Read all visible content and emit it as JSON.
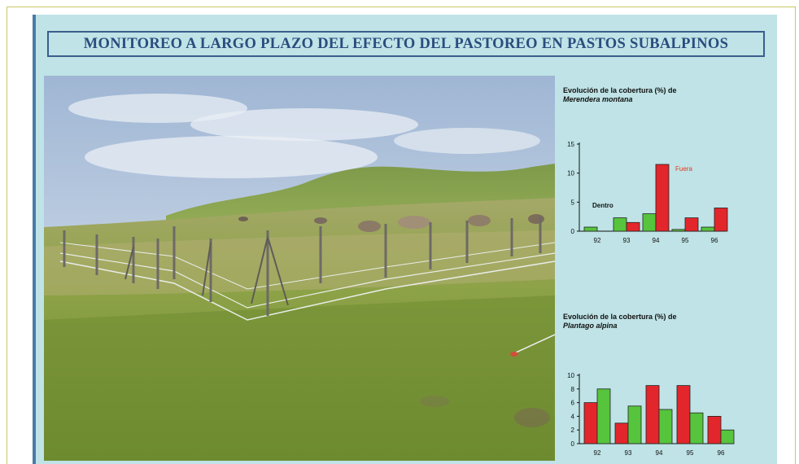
{
  "title": "MONITOREO A LARGO PLAZO DEL EFECTO DEL PASTOREO EN PASTOS SUBALPINOS",
  "photo": {
    "subject": "fenced-pasture-photo"
  },
  "colors": {
    "inside": "#56c43c",
    "outside": "#e3262b",
    "poster_bg": "#bfe3e6",
    "title_border": "#3b5e8c"
  },
  "chart_data": [
    {
      "type": "bar",
      "title_prefix": "Evolución de la cobertura (%) de",
      "title_species": "Merendera montana",
      "categories": [
        "92",
        "93",
        "94",
        "95",
        "96"
      ],
      "ylim": [
        0,
        15
      ],
      "yticks": [
        "0",
        "5",
        "10",
        "15"
      ],
      "annotations": {
        "inside": "Dentro",
        "outside": "Fuera"
      },
      "series": [
        {
          "name": "Dentro",
          "color": "#56c43c",
          "values": [
            0.7,
            2.3,
            3.0,
            0.3,
            0.7
          ]
        },
        {
          "name": "Fuera",
          "color": "#e3262b",
          "values": [
            0.0,
            1.5,
            11.5,
            2.3,
            4.0
          ]
        }
      ]
    },
    {
      "type": "bar",
      "title_prefix": "Evolución de la cobertura (%) de",
      "title_species": "Plantago alpina",
      "categories": [
        "92",
        "93",
        "94",
        "95",
        "96"
      ],
      "ylim": [
        0,
        10
      ],
      "yticks": [
        "0",
        "2",
        "4",
        "6",
        "8",
        "10"
      ],
      "series": [
        {
          "name": "Fuera",
          "color": "#e3262b",
          "values": [
            6.0,
            3.0,
            8.5,
            8.5,
            4.0
          ]
        },
        {
          "name": "Dentro",
          "color": "#56c43c",
          "values": [
            8.0,
            5.5,
            5.0,
            4.5,
            2.0
          ]
        }
      ]
    }
  ]
}
